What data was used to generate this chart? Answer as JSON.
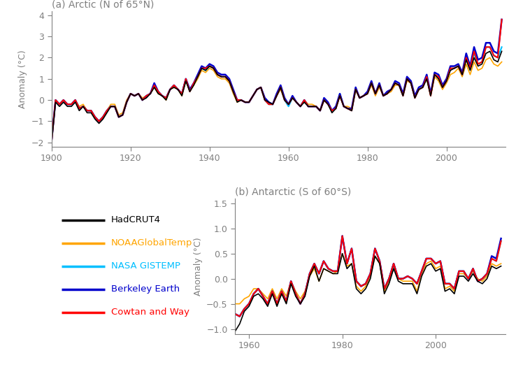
{
  "arctic_years": [
    1900,
    1901,
    1902,
    1903,
    1904,
    1905,
    1906,
    1907,
    1908,
    1909,
    1910,
    1911,
    1912,
    1913,
    1914,
    1915,
    1916,
    1917,
    1918,
    1919,
    1920,
    1921,
    1922,
    1923,
    1924,
    1925,
    1926,
    1927,
    1928,
    1929,
    1930,
    1931,
    1932,
    1933,
    1934,
    1935,
    1936,
    1937,
    1938,
    1939,
    1940,
    1941,
    1942,
    1943,
    1944,
    1945,
    1946,
    1947,
    1948,
    1949,
    1950,
    1951,
    1952,
    1953,
    1954,
    1955,
    1956,
    1957,
    1958,
    1959,
    1960,
    1961,
    1962,
    1963,
    1964,
    1965,
    1966,
    1967,
    1968,
    1969,
    1970,
    1971,
    1972,
    1973,
    1974,
    1975,
    1976,
    1977,
    1978,
    1979,
    1980,
    1981,
    1982,
    1983,
    1984,
    1985,
    1986,
    1987,
    1988,
    1989,
    1990,
    1991,
    1992,
    1993,
    1994,
    1995,
    1996,
    1997,
    1998,
    1999,
    2000,
    2001,
    2002,
    2003,
    2004,
    2005,
    2006,
    2007,
    2008,
    2009,
    2010,
    2011,
    2012,
    2013,
    2014
  ],
  "arctic_hadcrut4": [
    -2.0,
    -0.1,
    -0.3,
    -0.1,
    -0.3,
    -0.3,
    -0.1,
    -0.5,
    -0.3,
    -0.6,
    -0.6,
    -0.9,
    -1.1,
    -0.9,
    -0.6,
    -0.3,
    -0.3,
    -0.8,
    -0.7,
    -0.1,
    0.3,
    0.2,
    0.3,
    0.0,
    0.1,
    0.3,
    0.6,
    0.3,
    0.2,
    0.0,
    0.5,
    0.6,
    0.5,
    0.2,
    0.9,
    0.4,
    0.7,
    1.1,
    1.5,
    1.4,
    1.6,
    1.5,
    1.2,
    1.1,
    1.1,
    0.9,
    0.4,
    -0.1,
    0.0,
    -0.1,
    -0.1,
    0.2,
    0.5,
    0.6,
    0.0,
    -0.1,
    -0.2,
    0.2,
    0.6,
    0.0,
    -0.2,
    0.1,
    -0.1,
    -0.3,
    -0.1,
    -0.3,
    -0.3,
    -0.3,
    -0.5,
    0.0,
    -0.2,
    -0.6,
    -0.4,
    0.2,
    -0.3,
    -0.4,
    -0.5,
    0.5,
    0.1,
    0.2,
    0.3,
    0.8,
    0.3,
    0.7,
    0.2,
    0.3,
    0.5,
    0.8,
    0.7,
    0.2,
    1.0,
    0.8,
    0.1,
    0.5,
    0.6,
    1.0,
    0.2,
    1.2,
    1.0,
    0.6,
    0.9,
    1.4,
    1.5,
    1.6,
    1.2,
    1.9,
    1.4,
    2.0,
    1.6,
    1.7,
    2.2,
    2.3,
    1.9,
    1.8,
    2.3
  ],
  "arctic_noaa": [
    -1.8,
    0.0,
    -0.2,
    0.0,
    -0.2,
    -0.2,
    0.0,
    -0.3,
    -0.2,
    -0.5,
    -0.5,
    -0.8,
    -1.0,
    -0.8,
    -0.5,
    -0.2,
    -0.2,
    -0.7,
    -0.6,
    0.0,
    0.3,
    0.2,
    0.3,
    0.1,
    0.2,
    0.3,
    0.6,
    0.3,
    0.2,
    0.0,
    0.5,
    0.6,
    0.5,
    0.2,
    0.9,
    0.4,
    0.7,
    1.0,
    1.4,
    1.3,
    1.5,
    1.4,
    1.1,
    1.0,
    1.0,
    0.8,
    0.3,
    -0.1,
    -0.0,
    -0.1,
    -0.1,
    0.2,
    0.5,
    0.6,
    0.0,
    -0.1,
    -0.2,
    0.2,
    0.5,
    0.0,
    -0.2,
    0.1,
    -0.1,
    -0.3,
    -0.0,
    -0.2,
    -0.2,
    -0.3,
    -0.5,
    0.0,
    -0.2,
    -0.5,
    -0.3,
    0.2,
    -0.3,
    -0.3,
    -0.4,
    0.5,
    0.1,
    0.2,
    0.3,
    0.7,
    0.2,
    0.6,
    0.2,
    0.3,
    0.4,
    0.7,
    0.7,
    0.2,
    0.9,
    0.8,
    0.1,
    0.5,
    0.6,
    1.0,
    0.2,
    1.1,
    0.9,
    0.5,
    0.8,
    1.2,
    1.3,
    1.5,
    1.1,
    1.7,
    1.2,
    1.8,
    1.4,
    1.5,
    1.9,
    2.0,
    1.7,
    1.6,
    1.8
  ],
  "arctic_gistemp": [
    -1.9,
    0.0,
    -0.2,
    0.0,
    -0.2,
    -0.2,
    0.0,
    -0.4,
    -0.3,
    -0.5,
    -0.5,
    -0.8,
    -1.0,
    -0.8,
    -0.5,
    -0.3,
    -0.3,
    -0.8,
    -0.7,
    -0.1,
    0.3,
    0.2,
    0.3,
    0.0,
    0.2,
    0.3,
    0.7,
    0.4,
    0.2,
    0.1,
    0.5,
    0.7,
    0.5,
    0.3,
    1.0,
    0.4,
    0.8,
    1.1,
    1.5,
    1.4,
    1.6,
    1.5,
    1.2,
    1.1,
    1.1,
    0.9,
    0.4,
    0.0,
    0.0,
    -0.1,
    -0.1,
    0.2,
    0.5,
    0.6,
    0.0,
    -0.2,
    -0.2,
    0.2,
    0.6,
    0.0,
    -0.3,
    0.1,
    -0.1,
    -0.3,
    -0.0,
    -0.3,
    -0.3,
    -0.3,
    -0.5,
    0.0,
    -0.2,
    -0.5,
    -0.4,
    0.3,
    -0.3,
    -0.4,
    -0.5,
    0.5,
    0.1,
    0.2,
    0.3,
    0.8,
    0.3,
    0.7,
    0.2,
    0.3,
    0.5,
    0.8,
    0.7,
    0.2,
    1.0,
    0.8,
    0.1,
    0.5,
    0.6,
    1.1,
    0.3,
    1.2,
    1.1,
    0.6,
    0.9,
    1.5,
    1.5,
    1.6,
    1.2,
    2.0,
    1.5,
    2.2,
    1.7,
    1.8,
    2.5,
    2.5,
    2.1,
    2.0,
    2.5
  ],
  "arctic_berkeley": [
    -1.9,
    0.0,
    -0.2,
    0.0,
    -0.2,
    -0.2,
    0.0,
    -0.4,
    -0.3,
    -0.5,
    -0.5,
    -0.8,
    -1.0,
    -0.8,
    -0.5,
    -0.3,
    -0.3,
    -0.8,
    -0.7,
    -0.1,
    0.3,
    0.2,
    0.3,
    0.0,
    0.2,
    0.3,
    0.8,
    0.4,
    0.2,
    0.1,
    0.5,
    0.7,
    0.5,
    0.3,
    1.0,
    0.5,
    0.8,
    1.2,
    1.6,
    1.5,
    1.7,
    1.6,
    1.3,
    1.2,
    1.2,
    1.0,
    0.5,
    0.0,
    0.0,
    -0.1,
    -0.1,
    0.2,
    0.5,
    0.6,
    0.1,
    -0.1,
    -0.2,
    0.3,
    0.7,
    0.1,
    -0.2,
    0.2,
    -0.1,
    -0.3,
    0.0,
    -0.3,
    -0.3,
    -0.3,
    -0.5,
    0.1,
    -0.1,
    -0.5,
    -0.3,
    0.3,
    -0.3,
    -0.4,
    -0.4,
    0.6,
    0.1,
    0.2,
    0.4,
    0.9,
    0.3,
    0.8,
    0.2,
    0.4,
    0.5,
    0.9,
    0.8,
    0.3,
    1.1,
    0.9,
    0.2,
    0.6,
    0.7,
    1.2,
    0.3,
    1.3,
    1.2,
    0.7,
    1.0,
    1.6,
    1.6,
    1.7,
    1.3,
    2.2,
    1.6,
    2.5,
    1.9,
    2.0,
    2.7,
    2.7,
    2.3,
    2.2,
    3.8
  ],
  "arctic_cowtan": [
    -1.95,
    0.0,
    -0.2,
    0.0,
    -0.2,
    -0.2,
    0.0,
    -0.4,
    -0.3,
    -0.5,
    -0.5,
    -0.8,
    -1.0,
    -0.8,
    -0.5,
    -0.3,
    -0.3,
    -0.8,
    -0.7,
    -0.1,
    0.3,
    0.2,
    0.3,
    0.0,
    0.2,
    0.3,
    0.7,
    0.4,
    0.2,
    0.1,
    0.5,
    0.7,
    0.5,
    0.3,
    1.0,
    0.4,
    0.8,
    1.1,
    1.5,
    1.5,
    1.6,
    1.5,
    1.2,
    1.1,
    1.1,
    0.9,
    0.4,
    0.0,
    0.0,
    -0.1,
    -0.1,
    0.2,
    0.5,
    0.6,
    0.0,
    -0.2,
    -0.2,
    0.2,
    0.6,
    0.0,
    -0.2,
    0.1,
    -0.1,
    -0.3,
    0.0,
    -0.3,
    -0.3,
    -0.3,
    -0.5,
    0.0,
    -0.2,
    -0.5,
    -0.4,
    0.2,
    -0.3,
    -0.4,
    -0.5,
    0.5,
    0.1,
    0.2,
    0.3,
    0.8,
    0.3,
    0.7,
    0.2,
    0.3,
    0.5,
    0.8,
    0.7,
    0.2,
    1.0,
    0.8,
    0.1,
    0.5,
    0.6,
    1.1,
    0.2,
    1.2,
    1.1,
    0.6,
    0.9,
    1.5,
    1.5,
    1.6,
    1.2,
    2.0,
    1.5,
    2.3,
    1.7,
    1.8,
    2.5,
    2.5,
    2.1,
    2.0,
    3.8
  ],
  "antarctic_years": [
    1957,
    1958,
    1959,
    1960,
    1961,
    1962,
    1963,
    1964,
    1965,
    1966,
    1967,
    1968,
    1969,
    1970,
    1971,
    1972,
    1973,
    1974,
    1975,
    1976,
    1977,
    1978,
    1979,
    1980,
    1981,
    1982,
    1983,
    1984,
    1985,
    1986,
    1987,
    1988,
    1989,
    1990,
    1991,
    1992,
    1993,
    1994,
    1995,
    1996,
    1997,
    1998,
    1999,
    2000,
    2001,
    2002,
    2003,
    2004,
    2005,
    2006,
    2007,
    2008,
    2009,
    2010,
    2011,
    2012,
    2013,
    2014
  ],
  "antarctic_hadcrut4": [
    -1.05,
    -0.9,
    -0.65,
    -0.55,
    -0.35,
    -0.3,
    -0.4,
    -0.55,
    -0.3,
    -0.55,
    -0.3,
    -0.5,
    -0.1,
    -0.35,
    -0.5,
    -0.35,
    0.05,
    0.25,
    -0.05,
    0.2,
    0.15,
    0.1,
    0.1,
    0.5,
    0.2,
    0.3,
    -0.2,
    -0.3,
    -0.2,
    0.0,
    0.45,
    0.3,
    -0.3,
    -0.1,
    0.2,
    -0.05,
    -0.1,
    -0.1,
    -0.1,
    -0.3,
    0.05,
    0.25,
    0.3,
    0.15,
    0.2,
    -0.25,
    -0.2,
    -0.3,
    0.05,
    0.05,
    -0.05,
    0.1,
    -0.05,
    -0.1,
    0.0,
    0.25,
    0.2,
    0.25
  ],
  "antarctic_noaa": [
    -0.5,
    -0.5,
    -0.4,
    -0.35,
    -0.2,
    -0.2,
    -0.3,
    -0.4,
    -0.2,
    -0.4,
    -0.2,
    -0.35,
    -0.05,
    -0.25,
    -0.4,
    -0.25,
    0.05,
    0.2,
    -0.05,
    0.2,
    0.15,
    0.1,
    0.15,
    0.5,
    0.25,
    0.3,
    -0.15,
    -0.25,
    -0.15,
    0.05,
    0.45,
    0.3,
    -0.25,
    -0.05,
    0.25,
    -0.0,
    -0.05,
    -0.05,
    -0.05,
    -0.25,
    0.1,
    0.3,
    0.35,
    0.2,
    0.25,
    -0.2,
    -0.15,
    -0.25,
    0.1,
    0.1,
    0.0,
    0.15,
    0.0,
    -0.05,
    0.05,
    0.3,
    0.25,
    0.3
  ],
  "antarctic_gistemp": [
    -0.7,
    -0.75,
    -0.6,
    -0.5,
    -0.3,
    -0.2,
    -0.35,
    -0.5,
    -0.25,
    -0.5,
    -0.25,
    -0.45,
    -0.05,
    -0.3,
    -0.5,
    -0.3,
    0.1,
    0.3,
    0.1,
    0.35,
    0.2,
    0.15,
    0.15,
    0.85,
    0.3,
    0.6,
    -0.05,
    -0.15,
    -0.1,
    0.1,
    0.6,
    0.35,
    -0.2,
    0.0,
    0.3,
    0.0,
    0.0,
    0.05,
    0.0,
    -0.1,
    0.15,
    0.4,
    0.4,
    0.3,
    0.35,
    -0.1,
    -0.1,
    -0.2,
    0.15,
    0.15,
    0.0,
    0.2,
    -0.05,
    0.0,
    0.1,
    0.4,
    0.35,
    0.75
  ],
  "antarctic_berkeley": [
    -0.7,
    -0.75,
    -0.6,
    -0.5,
    -0.3,
    -0.2,
    -0.35,
    -0.5,
    -0.25,
    -0.5,
    -0.25,
    -0.45,
    -0.05,
    -0.3,
    -0.5,
    -0.3,
    0.1,
    0.3,
    0.1,
    0.35,
    0.2,
    0.15,
    0.15,
    0.85,
    0.3,
    0.6,
    -0.05,
    -0.15,
    -0.1,
    0.1,
    0.6,
    0.35,
    -0.2,
    0.0,
    0.3,
    0.0,
    0.0,
    0.05,
    0.0,
    -0.1,
    0.15,
    0.4,
    0.4,
    0.3,
    0.35,
    -0.1,
    -0.1,
    -0.2,
    0.15,
    0.15,
    0.0,
    0.2,
    -0.05,
    0.0,
    0.1,
    0.45,
    0.4,
    0.8
  ],
  "antarctic_cowtan": [
    -0.7,
    -0.75,
    -0.6,
    -0.5,
    -0.3,
    -0.2,
    -0.35,
    -0.5,
    -0.25,
    -0.5,
    -0.25,
    -0.45,
    -0.05,
    -0.3,
    -0.5,
    -0.3,
    0.1,
    0.3,
    0.1,
    0.35,
    0.2,
    0.15,
    0.15,
    0.85,
    0.3,
    0.6,
    -0.05,
    -0.15,
    -0.1,
    0.1,
    0.6,
    0.35,
    -0.2,
    0.0,
    0.3,
    0.0,
    0.0,
    0.05,
    0.0,
    -0.1,
    0.15,
    0.4,
    0.4,
    0.3,
    0.35,
    -0.1,
    -0.1,
    -0.2,
    0.15,
    0.15,
    0.0,
    0.2,
    -0.05,
    0.0,
    0.1,
    0.4,
    0.35,
    0.75
  ],
  "colors": {
    "hadcrut4": "#000000",
    "noaa": "#FFA500",
    "gistemp": "#00BFFF",
    "berkeley": "#0000CC",
    "cowtan": "#FF0000"
  },
  "linewidths": {
    "hadcrut4": 1.2,
    "noaa": 1.2,
    "gistemp": 1.5,
    "berkeley": 1.8,
    "cowtan": 1.5
  },
  "legend_labels": [
    "HadCRUT4",
    "NOAAGlobalTemp",
    "NASA GISTEMP",
    "Berkeley Earth",
    "Cowtan and Way"
  ],
  "legend_colors": [
    "#000000",
    "#FFA500",
    "#00BFFF",
    "#0000CC",
    "#FF0000"
  ],
  "arctic_title": "(a) Arctic (N of 65°N)",
  "antarctic_title": "(b) Antarctic (S of 60°S)",
  "ylabel": "Anomaly (°C)",
  "arctic_xlim": [
    1900,
    2015
  ],
  "arctic_ylim": [
    -2.2,
    4.2
  ],
  "antarctic_xlim": [
    1957,
    2015
  ],
  "antarctic_ylim": [
    -1.1,
    1.6
  ],
  "arctic_yticks": [
    -2,
    -1,
    0,
    1,
    2,
    3,
    4
  ],
  "antarctic_yticks": [
    -1.0,
    -0.5,
    0.0,
    0.5,
    1.0,
    1.5
  ],
  "arctic_xticks": [
    1900,
    1920,
    1940,
    1960,
    1980,
    2000
  ],
  "antarctic_xticks": [
    1960,
    1980,
    2000
  ]
}
